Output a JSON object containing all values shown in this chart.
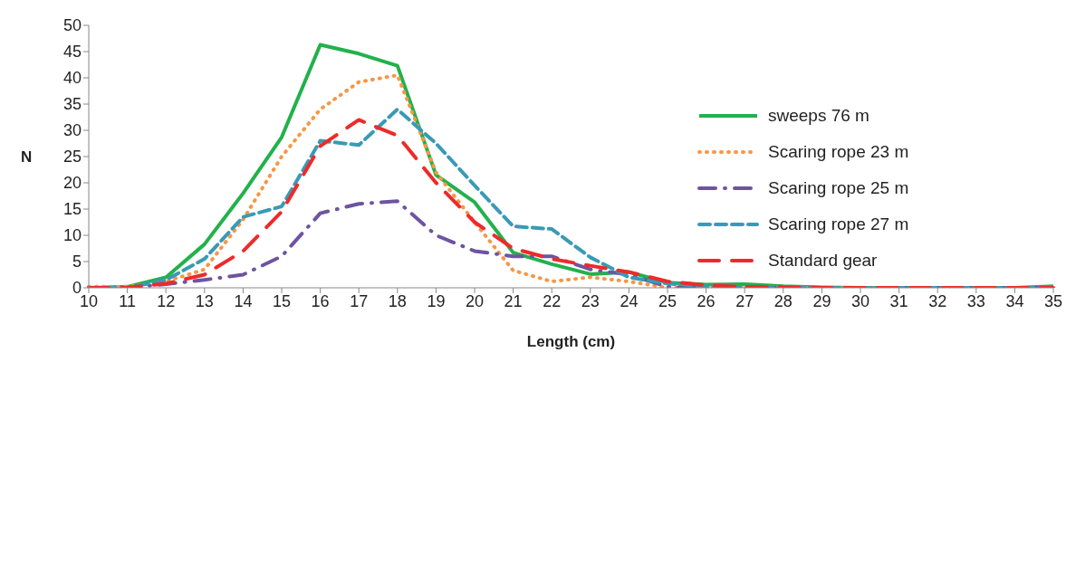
{
  "chart_data": {
    "type": "line",
    "xlabel": "Length (cm)",
    "ylabel": "N",
    "categories": [
      "10",
      "11",
      "12",
      "13",
      "14",
      "15",
      "16",
      "17",
      "18",
      "19",
      "20",
      "21",
      "22",
      "23",
      "24",
      "25",
      "26",
      "27",
      "28",
      "29",
      "30",
      "31",
      "32",
      "33",
      "34",
      "35"
    ],
    "ylim": [
      0,
      50
    ],
    "yticks": [
      0,
      5,
      10,
      15,
      20,
      25,
      30,
      35,
      40,
      45,
      50
    ],
    "grid": false,
    "legend": "right",
    "marker": "none",
    "series": [
      {
        "name": "sweeps 76 m",
        "color": "#22b14c",
        "line_style": "solid",
        "values": [
          0,
          0.2,
          2,
          8.3,
          18,
          28.7,
          46.3,
          44.6,
          42.3,
          21.5,
          16.3,
          6.7,
          4.5,
          2.6,
          3,
          1,
          0.6,
          0.7,
          0.3,
          0.1,
          0,
          0,
          0,
          0,
          0,
          0.3
        ]
      },
      {
        "name": "Scaring rope 23 m",
        "color": "#f79646",
        "line_style": "dotted",
        "values": [
          0.2,
          0.2,
          1.2,
          3.5,
          13,
          25,
          34,
          39.2,
          40.5,
          22,
          12.5,
          3.3,
          1.2,
          2,
          1.2,
          0,
          0,
          0,
          0,
          0,
          0,
          0,
          null,
          null,
          null,
          null
        ]
      },
      {
        "name": "Scaring rope 25 m",
        "color": "#6e54a0",
        "line_style": "dashdot",
        "values": [
          0,
          0,
          0.7,
          1.5,
          2.5,
          6,
          14.2,
          16,
          16.5,
          10,
          7,
          6,
          6,
          3.5,
          2.5,
          0.2,
          0,
          0,
          0,
          0,
          0,
          0,
          0,
          0,
          0,
          0
        ]
      },
      {
        "name": "Scaring rope 27 m",
        "color": "#3a9ab5",
        "line_style": "dashed",
        "values": [
          0,
          0,
          1.5,
          5.5,
          13.5,
          15.5,
          28,
          27.2,
          34,
          27.5,
          19.5,
          11.7,
          11.2,
          5.8,
          2,
          0.8,
          0.3,
          0,
          0,
          0,
          0,
          0,
          0,
          0,
          0,
          0
        ]
      },
      {
        "name": "Standard gear",
        "color": "#ee2a2a",
        "line_style": "longdash",
        "values": [
          0,
          0,
          0.8,
          2.5,
          7,
          14.5,
          27,
          32,
          29,
          20,
          12.5,
          7.5,
          5.5,
          4.2,
          3,
          1.2,
          0.5,
          0.2,
          0.1,
          0,
          0,
          0,
          0,
          0,
          0,
          0
        ]
      }
    ]
  }
}
